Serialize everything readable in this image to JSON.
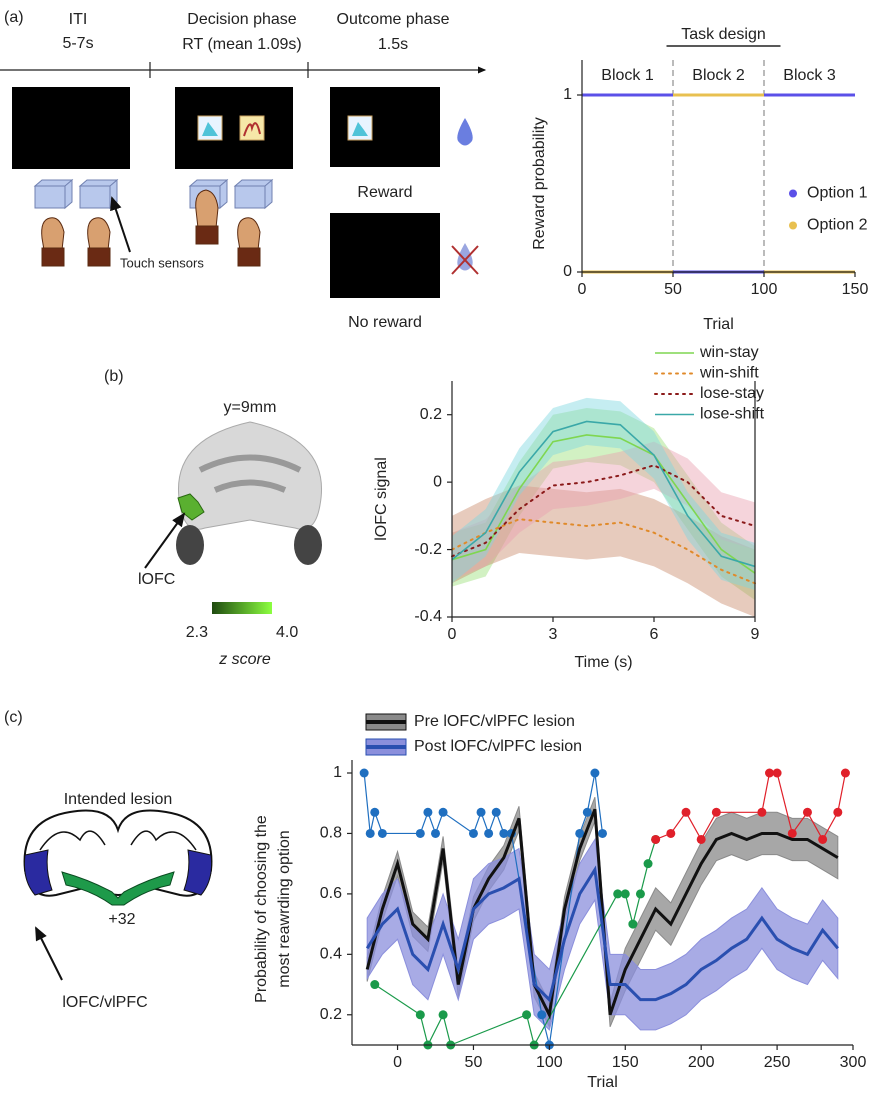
{
  "panel_labels": [
    "(a)",
    "(b)",
    "(c)"
  ],
  "panel_a": {
    "phases": [
      {
        "title": "ITI",
        "detail": "5-7s"
      },
      {
        "title": "Decision phase",
        "detail": "RT (mean 1.09s)"
      },
      {
        "title": "Outcome phase",
        "detail": "1.5s"
      }
    ],
    "sensor_label": "Touch sensors",
    "reward": "Reward",
    "no_reward": "No reward"
  },
  "panel_b": {
    "slice": "y=9mm",
    "region": "lOFC",
    "colorbar": {
      "ticks": [
        2.3,
        {
          "value": 4,
          "label": "4.0"
        }
      ],
      "label": "z score",
      "colors": [
        "#1f4a10",
        "#8cff40"
      ]
    }
  },
  "panel_c": {
    "title": "Intended lesion",
    "slice": "+32",
    "region": "lOFC/vlPFC"
  },
  "chart_data": [
    {
      "type": "line",
      "title": "Task design",
      "xlabel": "Trial",
      "ylabel": "Reward probability",
      "x": [
        0,
        50,
        50,
        50,
        100,
        100,
        100,
        150
      ],
      "xlim": [
        0,
        150
      ],
      "xticks": [
        0,
        50,
        100,
        150
      ],
      "ylim": [
        0,
        1
      ],
      "yticks": [
        0,
        1
      ],
      "block_edges": [
        50,
        100
      ],
      "annotations": [
        "Block 1",
        "Block 2",
        "Block 3"
      ],
      "legend": "right",
      "series": [
        {
          "name": "Option 1",
          "color": "#5b50e8",
          "values": [
            1,
            1,
            null,
            0,
            0,
            null,
            1,
            1
          ]
        },
        {
          "name": "Option 2",
          "color": "#e8c050",
          "values": [
            0,
            0,
            null,
            1,
            1,
            null,
            0,
            0
          ]
        }
      ]
    },
    {
      "type": "line",
      "xlabel": "Time (s)",
      "ylabel": "lOFC signal",
      "x": [
        0,
        1,
        2,
        3,
        4,
        5,
        6,
        7,
        8,
        9
      ],
      "xlim": [
        0,
        9
      ],
      "xticks": [
        0,
        3,
        6,
        9
      ],
      "ylim": [
        -0.4,
        0.3
      ],
      "yticks": [
        -0.4,
        -0.2,
        0,
        0.2
      ],
      "legend": "upper right",
      "series": [
        {
          "name": "win-stay",
          "color": "#7fd650",
          "band_color": "#9be07a",
          "dash": "solid",
          "values": [
            -0.23,
            -0.2,
            -0.02,
            0.12,
            0.14,
            0.13,
            0.08,
            -0.06,
            -0.2,
            -0.27
          ],
          "lower": [
            -0.31,
            -0.28,
            -0.1,
            0.04,
            0.06,
            0.05,
            0,
            -0.14,
            -0.28,
            -0.35
          ],
          "upper": [
            -0.15,
            -0.12,
            0.06,
            0.2,
            0.22,
            0.21,
            0.16,
            0.02,
            -0.12,
            -0.19
          ]
        },
        {
          "name": "win-shift",
          "color": "#e08a2a",
          "band_color": "#c98c6c",
          "dash": "dotted",
          "values": [
            -0.2,
            -0.15,
            -0.11,
            -0.12,
            -0.13,
            -0.12,
            -0.15,
            -0.2,
            -0.26,
            -0.3
          ],
          "lower": [
            -0.3,
            -0.25,
            -0.21,
            -0.22,
            -0.23,
            -0.22,
            -0.25,
            -0.3,
            -0.36,
            -0.4
          ],
          "upper": [
            -0.1,
            -0.05,
            -0.01,
            -0.02,
            -0.03,
            -0.02,
            -0.05,
            -0.1,
            -0.16,
            -0.2
          ]
        },
        {
          "name": "lose-stay",
          "color": "#8b1a1a",
          "band_color": "#e8a0b0",
          "dash": "dotted",
          "values": [
            -0.22,
            -0.18,
            -0.08,
            -0.01,
            0,
            0.02,
            0.05,
            0,
            -0.1,
            -0.13
          ],
          "lower": [
            -0.29,
            -0.25,
            -0.15,
            -0.08,
            -0.07,
            -0.05,
            -0.02,
            -0.07,
            -0.17,
            -0.2
          ],
          "upper": [
            -0.15,
            -0.11,
            -0.01,
            0.06,
            0.07,
            0.09,
            0.12,
            0.07,
            -0.03,
            -0.06
          ]
        },
        {
          "name": "lose-shift",
          "color": "#3aa8a8",
          "band_color": "#7fd6e0",
          "dash": "solid",
          "values": [
            -0.23,
            -0.15,
            0.03,
            0.15,
            0.18,
            0.17,
            0.08,
            -0.1,
            -0.22,
            -0.25
          ],
          "lower": [
            -0.3,
            -0.22,
            -0.04,
            0.08,
            0.11,
            0.1,
            0.01,
            -0.17,
            -0.29,
            -0.32
          ],
          "upper": [
            -0.16,
            -0.08,
            0.1,
            0.22,
            0.25,
            0.24,
            0.15,
            -0.03,
            -0.15,
            -0.18
          ]
        }
      ]
    },
    {
      "type": "line",
      "xlabel": "Trial",
      "ylabel": [
        "Probability of choosing the",
        "most reawrding option"
      ],
      "x": [
        -20,
        -10,
        0,
        10,
        20,
        30,
        40,
        50,
        60,
        70,
        80,
        90,
        100,
        110,
        120,
        130,
        140,
        150,
        160,
        170,
        180,
        190,
        200,
        210,
        220,
        230,
        240,
        250,
        260,
        270,
        280,
        290
      ],
      "xlim": [
        -30,
        300
      ],
      "xticks": [
        0,
        50,
        100,
        150,
        200,
        250,
        300
      ],
      "ylim": [
        0.1,
        1
      ],
      "yticks": [
        0.2,
        0.4,
        0.6,
        0.8,
        1
      ],
      "legend": "top",
      "points": [
        {
          "color": "#1f6fc0",
          "x": [
            -22,
            -18,
            -15,
            -10,
            15,
            20,
            25,
            30,
            50,
            55,
            60,
            65,
            70,
            75,
            95,
            100,
            120,
            125,
            130,
            135
          ],
          "values": [
            1,
            0.8,
            0.87,
            0.8,
            0.8,
            0.87,
            0.8,
            0.87,
            0.8,
            0.87,
            0.8,
            0.87,
            0.8,
            0.8,
            0.2,
            0.1,
            0.8,
            0.87,
            1,
            0.8
          ]
        },
        {
          "color": "#1a9a4a",
          "x": [
            -15,
            15,
            20,
            30,
            35,
            85,
            90,
            145,
            150,
            155,
            160,
            165,
            170
          ],
          "values": [
            0.3,
            0.2,
            0.1,
            0.2,
            0.1,
            0.2,
            0.1,
            0.6,
            0.6,
            0.5,
            0.6,
            0.7,
            0.78
          ]
        },
        {
          "color": "#e0202a",
          "x": [
            170,
            180,
            190,
            200,
            210,
            240,
            245,
            250,
            260,
            270,
            280,
            290,
            295
          ],
          "values": [
            0.78,
            0.8,
            0.87,
            0.78,
            0.87,
            0.87,
            1,
            1,
            0.8,
            0.87,
            0.78,
            0.87,
            1
          ]
        }
      ],
      "series": [
        {
          "name": "Pre lOFC/vlPFC lesion",
          "color": "#111111",
          "band_color": "#8a8a8a",
          "dash": "solid",
          "values": [
            0.35,
            0.55,
            0.7,
            0.5,
            0.45,
            0.75,
            0.3,
            0.55,
            0.65,
            0.72,
            0.85,
            0.3,
            0.2,
            0.55,
            0.75,
            0.88,
            0.2,
            0.35,
            0.45,
            0.55,
            0.5,
            0.6,
            0.7,
            0.78,
            0.8,
            0.78,
            0.8,
            0.8,
            0.78,
            0.78,
            0.75,
            0.72
          ],
          "lower": [
            0.31,
            0.51,
            0.66,
            0.46,
            0.41,
            0.71,
            0.26,
            0.51,
            0.61,
            0.68,
            0.81,
            0.26,
            0.16,
            0.51,
            0.71,
            0.84,
            0.16,
            0.28,
            0.38,
            0.48,
            0.43,
            0.53,
            0.63,
            0.71,
            0.73,
            0.71,
            0.73,
            0.73,
            0.71,
            0.71,
            0.68,
            0.65
          ],
          "upper": [
            0.39,
            0.59,
            0.74,
            0.54,
            0.49,
            0.79,
            0.34,
            0.59,
            0.69,
            0.76,
            0.89,
            0.34,
            0.24,
            0.59,
            0.79,
            0.92,
            0.24,
            0.42,
            0.52,
            0.62,
            0.57,
            0.67,
            0.77,
            0.85,
            0.87,
            0.85,
            0.87,
            0.87,
            0.85,
            0.85,
            0.82,
            0.79
          ]
        },
        {
          "name": "Post lOFC/vlPFC lesion",
          "color": "#2a4fb0",
          "band_color": "#8b8fdc",
          "dash": "solid",
          "values": [
            0.42,
            0.5,
            0.55,
            0.4,
            0.35,
            0.5,
            0.35,
            0.55,
            0.6,
            0.62,
            0.65,
            0.3,
            0.25,
            0.45,
            0.6,
            0.68,
            0.3,
            0.3,
            0.25,
            0.25,
            0.27,
            0.3,
            0.35,
            0.38,
            0.42,
            0.45,
            0.52,
            0.45,
            0.42,
            0.4,
            0.48,
            0.42
          ],
          "lower": [
            0.32,
            0.4,
            0.45,
            0.3,
            0.25,
            0.4,
            0.25,
            0.45,
            0.5,
            0.52,
            0.55,
            0.2,
            0.15,
            0.35,
            0.5,
            0.58,
            0.2,
            0.2,
            0.15,
            0.15,
            0.17,
            0.2,
            0.25,
            0.28,
            0.32,
            0.35,
            0.42,
            0.35,
            0.32,
            0.3,
            0.38,
            0.32
          ],
          "upper": [
            0.52,
            0.6,
            0.65,
            0.5,
            0.45,
            0.6,
            0.45,
            0.65,
            0.7,
            0.72,
            0.75,
            0.4,
            0.35,
            0.55,
            0.7,
            0.78,
            0.4,
            0.4,
            0.35,
            0.35,
            0.37,
            0.4,
            0.45,
            0.48,
            0.52,
            0.55,
            0.62,
            0.55,
            0.52,
            0.5,
            0.58,
            0.52
          ]
        }
      ]
    }
  ]
}
